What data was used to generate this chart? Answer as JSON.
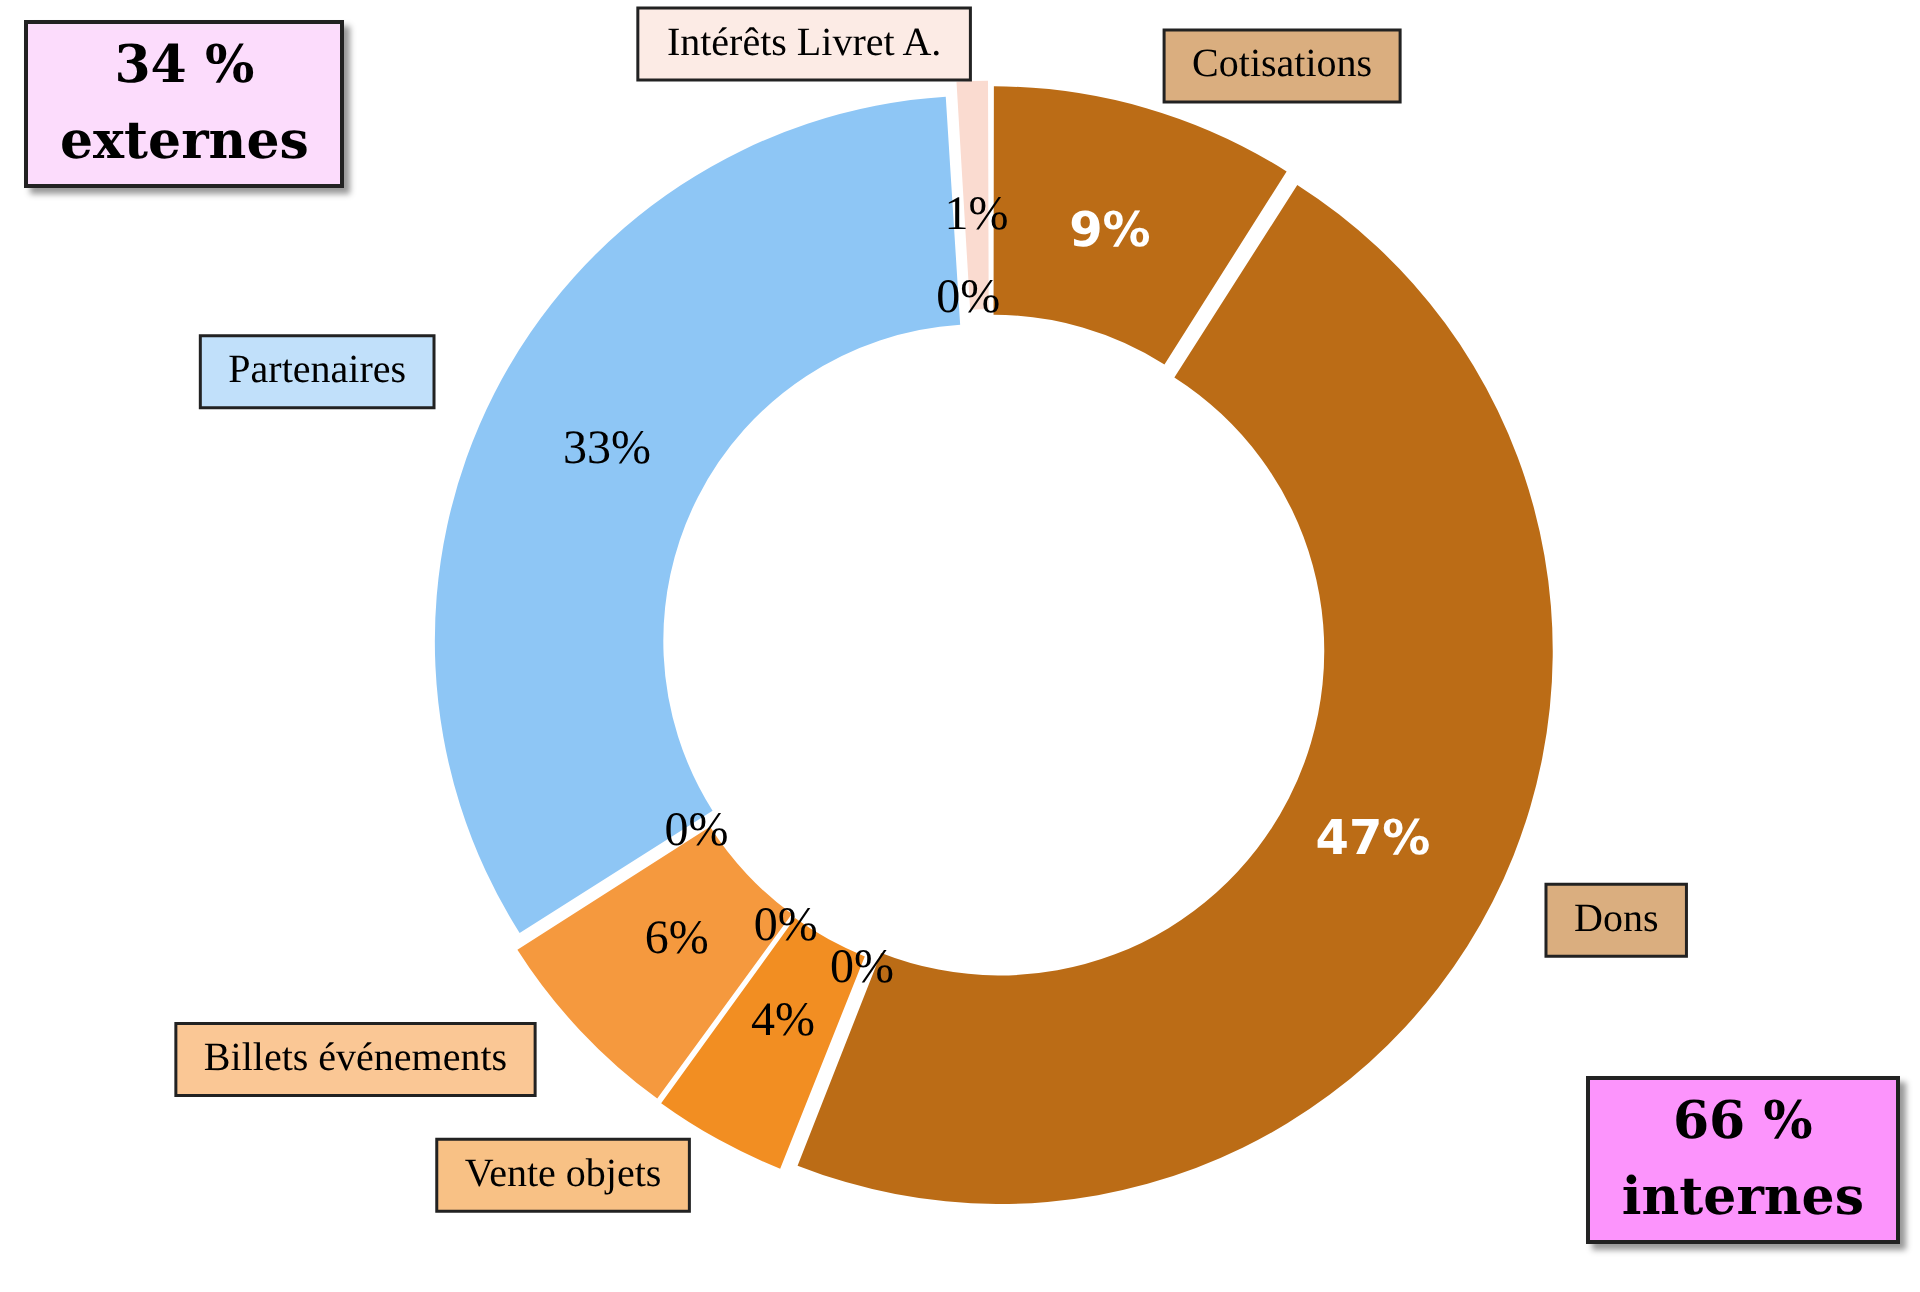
{
  "chart_data": {
    "type": "donut",
    "categories": [
      "Cotisations",
      "Dons",
      null,
      "Vente objets",
      null,
      "Billets événements",
      null,
      "Partenaires",
      null,
      "Intérêts Livret A."
    ],
    "values": [
      9,
      47,
      0,
      4,
      0,
      6,
      0,
      33,
      0,
      1
    ],
    "colors": [
      "#bb6c16",
      "#bb6c16",
      "#cccccc",
      "#f28e22",
      "#cccccc",
      "#f5993e",
      "#cccccc",
      "#8ec6f5",
      "#cccccc",
      "#fadbd0"
    ],
    "value_labels": [
      "9%",
      "47%",
      "0%",
      "4%",
      "0%",
      "6%",
      "0%",
      "33%",
      "0%",
      "1%"
    ],
    "legend": false,
    "annotations": [
      "34 %\nexternes",
      "66 %\ninternes"
    ]
  }
}
